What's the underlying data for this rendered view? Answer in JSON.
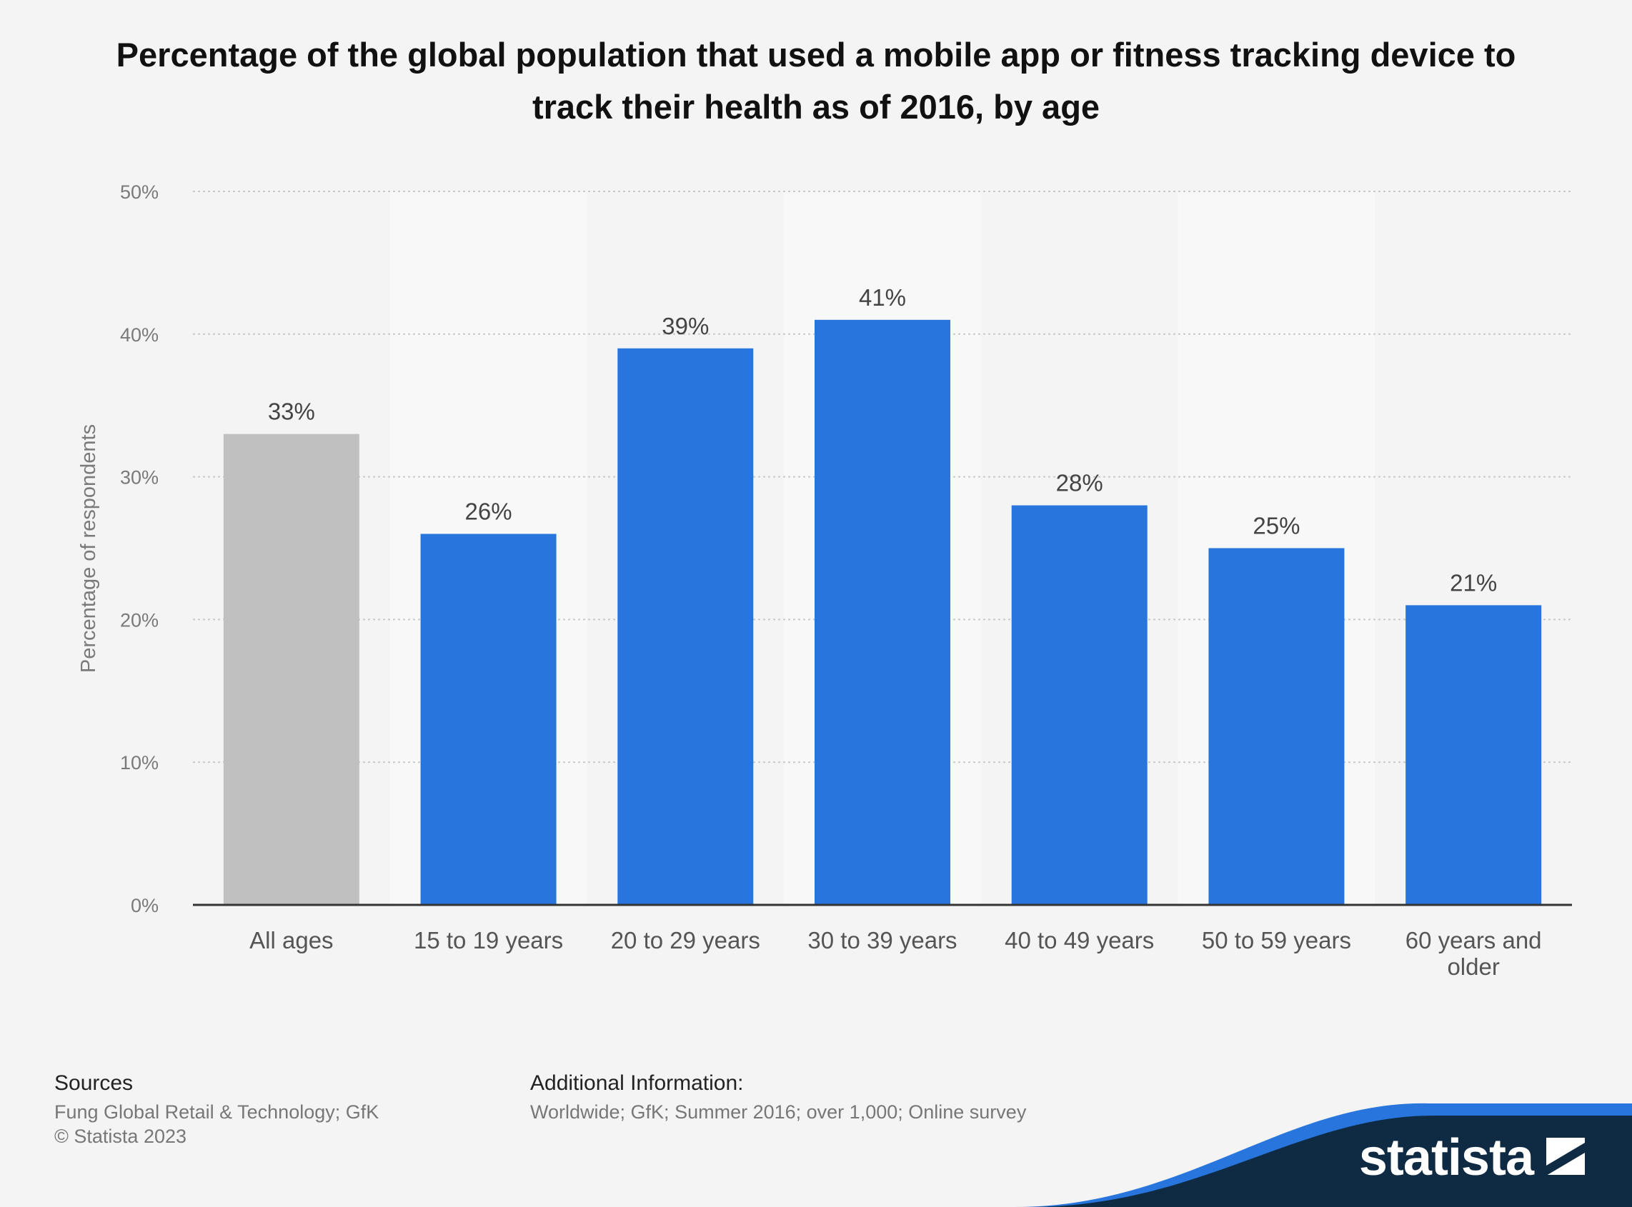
{
  "title": "Percentage of the global population that used a mobile app or fitness tracking device to track their health as of 2016, by age",
  "chart_data": {
    "type": "bar",
    "categories": [
      "All ages",
      "15 to 19 years",
      "20 to 29 years",
      "30 to 39 years",
      "40 to 49 years",
      "50 to 59 years",
      "60 years and older"
    ],
    "values": [
      33,
      26,
      39,
      41,
      28,
      25,
      21
    ],
    "data_labels": [
      "33%",
      "26%",
      "39%",
      "41%",
      "28%",
      "25%",
      "21%"
    ],
    "ylabel": "Percentage of respondents",
    "xlabel": "",
    "ylim": [
      0,
      50
    ],
    "yticks": [
      0,
      10,
      20,
      30,
      40,
      50
    ],
    "ytick_labels": [
      "0%",
      "10%",
      "20%",
      "30%",
      "40%",
      "50%"
    ],
    "grid": true,
    "colors": {
      "highlight": "#c0c0c0",
      "bars": "#2876dd",
      "band": "#f8f8f8"
    }
  },
  "footer": {
    "sources_heading": "Sources",
    "sources_line1": "Fung Global Retail & Technology; GfK",
    "sources_line2": "© Statista 2023",
    "info_heading": "Additional Information:",
    "info_text": "Worldwide; GfK; Summer 2016; over 1,000; Online survey"
  },
  "logo": {
    "text": "statista",
    "icon": "statista-logo-icon"
  }
}
